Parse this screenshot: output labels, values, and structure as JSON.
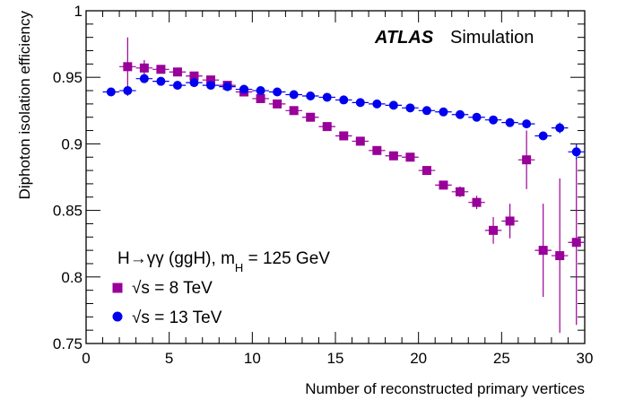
{
  "chart_data": {
    "type": "scatter",
    "title": "",
    "xlabel": "Number of reconstructed primary vertices",
    "ylabel": "Diphoton isolation efficiency",
    "xlim": [
      0,
      30
    ],
    "ylim": [
      0.75,
      1
    ],
    "x_ticks": [
      "0",
      "5",
      "10",
      "15",
      "20",
      "25",
      "30"
    ],
    "y_ticks": [
      "0.75",
      "0.8",
      "0.85",
      "0.9",
      "0.95",
      "1"
    ],
    "grid": false,
    "legend_placement": "bottom-left",
    "annotation": {
      "experiment": "ATLAS",
      "label": "Simulation",
      "process_main": "H→γγ (ggH),  m",
      "process_sub": "H",
      "process_tail": " = 125 GeV"
    },
    "series": [
      {
        "name": "√s = 8 TeV",
        "marker": "square",
        "color": "#990099",
        "points": [
          {
            "x": 2.5,
            "y": 0.958,
            "err": 0.022
          },
          {
            "x": 3.5,
            "y": 0.957,
            "err": 0.006
          },
          {
            "x": 4.5,
            "y": 0.956,
            "err": 0.003
          },
          {
            "x": 5.5,
            "y": 0.954,
            "err": 0.002
          },
          {
            "x": 6.5,
            "y": 0.951,
            "err": 0.002
          },
          {
            "x": 7.5,
            "y": 0.948,
            "err": 0.002
          },
          {
            "x": 8.5,
            "y": 0.944,
            "err": 0.002
          },
          {
            "x": 9.5,
            "y": 0.939,
            "err": 0.002
          },
          {
            "x": 10.5,
            "y": 0.934,
            "err": 0.002
          },
          {
            "x": 11.5,
            "y": 0.93,
            "err": 0.002
          },
          {
            "x": 12.5,
            "y": 0.925,
            "err": 0.002
          },
          {
            "x": 13.5,
            "y": 0.92,
            "err": 0.002
          },
          {
            "x": 14.5,
            "y": 0.913,
            "err": 0.002
          },
          {
            "x": 15.5,
            "y": 0.906,
            "err": 0.002
          },
          {
            "x": 16.5,
            "y": 0.902,
            "err": 0.002
          },
          {
            "x": 17.5,
            "y": 0.895,
            "err": 0.002
          },
          {
            "x": 18.5,
            "y": 0.891,
            "err": 0.002
          },
          {
            "x": 19.5,
            "y": 0.89,
            "err": 0.003
          },
          {
            "x": 20.5,
            "y": 0.88,
            "err": 0.003
          },
          {
            "x": 21.5,
            "y": 0.869,
            "err": 0.003
          },
          {
            "x": 22.5,
            "y": 0.864,
            "err": 0.004
          },
          {
            "x": 23.5,
            "y": 0.856,
            "err": 0.005
          },
          {
            "x": 24.5,
            "y": 0.835,
            "err": 0.01
          },
          {
            "x": 25.5,
            "y": 0.842,
            "err": 0.013
          },
          {
            "x": 26.5,
            "y": 0.888,
            "err": 0.022
          },
          {
            "x": 27.5,
            "y": 0.82,
            "err": 0.035
          },
          {
            "x": 28.5,
            "y": 0.816,
            "err": 0.058
          },
          {
            "x": 29.5,
            "y": 0.826,
            "err": 0.062
          }
        ]
      },
      {
        "name": "√s = 13 TeV",
        "marker": "circle",
        "color": "#0000ee",
        "points": [
          {
            "x": 1.5,
            "y": 0.939,
            "err": 0.003
          },
          {
            "x": 2.5,
            "y": 0.94,
            "err": 0.002
          },
          {
            "x": 3.5,
            "y": 0.949,
            "err": 0.002
          },
          {
            "x": 4.5,
            "y": 0.947,
            "err": 0.002
          },
          {
            "x": 5.5,
            "y": 0.944,
            "err": 0.002
          },
          {
            "x": 6.5,
            "y": 0.946,
            "err": 0.002
          },
          {
            "x": 7.5,
            "y": 0.944,
            "err": 0.002
          },
          {
            "x": 8.5,
            "y": 0.943,
            "err": 0.002
          },
          {
            "x": 9.5,
            "y": 0.941,
            "err": 0.002
          },
          {
            "x": 10.5,
            "y": 0.94,
            "err": 0.002
          },
          {
            "x": 11.5,
            "y": 0.939,
            "err": 0.002
          },
          {
            "x": 12.5,
            "y": 0.937,
            "err": 0.002
          },
          {
            "x": 13.5,
            "y": 0.936,
            "err": 0.002
          },
          {
            "x": 14.5,
            "y": 0.935,
            "err": 0.002
          },
          {
            "x": 15.5,
            "y": 0.933,
            "err": 0.002
          },
          {
            "x": 16.5,
            "y": 0.931,
            "err": 0.002
          },
          {
            "x": 17.5,
            "y": 0.93,
            "err": 0.002
          },
          {
            "x": 18.5,
            "y": 0.929,
            "err": 0.002
          },
          {
            "x": 19.5,
            "y": 0.927,
            "err": 0.002
          },
          {
            "x": 20.5,
            "y": 0.925,
            "err": 0.002
          },
          {
            "x": 21.5,
            "y": 0.924,
            "err": 0.002
          },
          {
            "x": 22.5,
            "y": 0.922,
            "err": 0.002
          },
          {
            "x": 23.5,
            "y": 0.92,
            "err": 0.002
          },
          {
            "x": 24.5,
            "y": 0.918,
            "err": 0.002
          },
          {
            "x": 25.5,
            "y": 0.916,
            "err": 0.002
          },
          {
            "x": 26.5,
            "y": 0.915,
            "err": 0.002
          },
          {
            "x": 27.5,
            "y": 0.906,
            "err": 0.003
          },
          {
            "x": 28.5,
            "y": 0.912,
            "err": 0.004
          },
          {
            "x": 29.5,
            "y": 0.894,
            "err": 0.006
          }
        ]
      }
    ]
  }
}
